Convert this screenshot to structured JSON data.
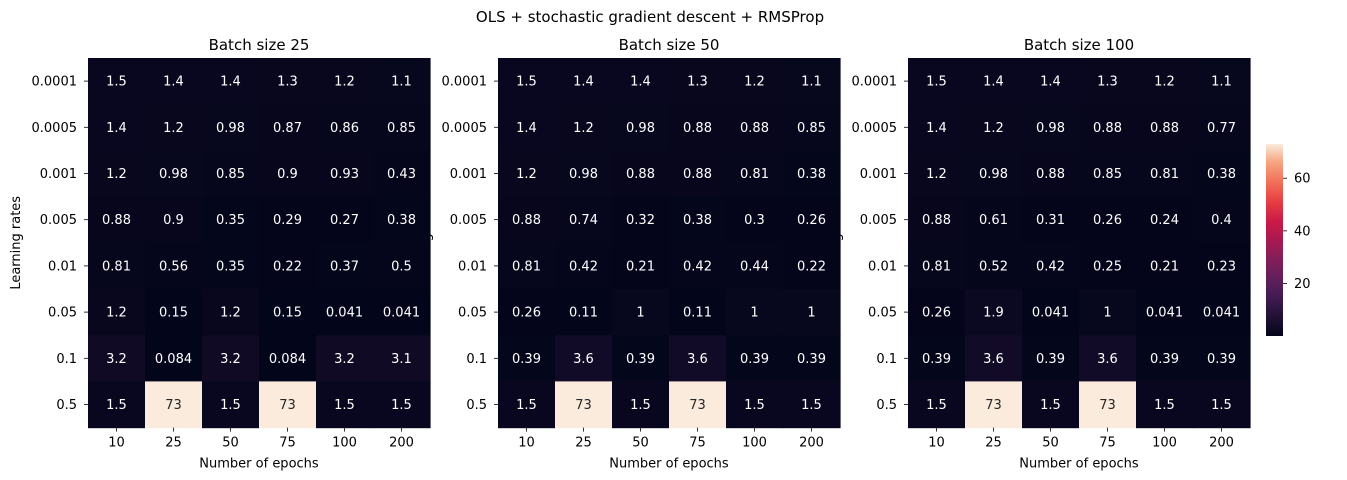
{
  "figure": {
    "suptitle": "OLS + stochastic gradient descent + RMSProp"
  },
  "colorbar": {
    "ticks": [
      20,
      40,
      60
    ],
    "vmin": 0.041,
    "vmax": 73,
    "colormap": "rocket"
  },
  "chart_data": [
    {
      "type": "heatmap",
      "title": "Batch size 25",
      "xlabel": "Number of epochs",
      "ylabel": "Learning rates",
      "x_categories": [
        "10",
        "25",
        "50",
        "75",
        "100",
        "200"
      ],
      "y_categories": [
        "0.0001",
        "0.0005",
        "0.001",
        "0.005",
        "0.01",
        "0.05",
        "0.1",
        "0.5"
      ],
      "values": [
        [
          1.5,
          1.4,
          1.4,
          1.3,
          1.2,
          1.1
        ],
        [
          1.4,
          1.2,
          0.98,
          0.87,
          0.86,
          0.85
        ],
        [
          1.2,
          0.98,
          0.85,
          0.9,
          0.93,
          0.43
        ],
        [
          0.88,
          0.9,
          0.35,
          0.29,
          0.27,
          0.38
        ],
        [
          0.81,
          0.56,
          0.35,
          0.22,
          0.37,
          0.5
        ],
        [
          1.2,
          0.15,
          1.2,
          0.15,
          0.041,
          0.041
        ],
        [
          3.2,
          0.084,
          3.2,
          0.084,
          3.2,
          3.1
        ],
        [
          1.5,
          73,
          1.5,
          73,
          1.5,
          1.5
        ]
      ]
    },
    {
      "type": "heatmap",
      "title": "Batch size 50",
      "xlabel": "Number of epochs",
      "ylabel": "Learning rates",
      "x_categories": [
        "10",
        "25",
        "50",
        "75",
        "100",
        "200"
      ],
      "y_categories": [
        "0.0001",
        "0.0005",
        "0.001",
        "0.005",
        "0.01",
        "0.05",
        "0.1",
        "0.5"
      ],
      "values": [
        [
          1.5,
          1.4,
          1.4,
          1.3,
          1.2,
          1.1
        ],
        [
          1.4,
          1.2,
          0.98,
          0.88,
          0.88,
          0.85
        ],
        [
          1.2,
          0.98,
          0.88,
          0.88,
          0.81,
          0.38
        ],
        [
          0.88,
          0.74,
          0.32,
          0.38,
          0.3,
          0.26
        ],
        [
          0.81,
          0.42,
          0.21,
          0.42,
          0.44,
          0.22
        ],
        [
          0.26,
          0.11,
          1,
          0.11,
          1,
          1
        ],
        [
          0.39,
          3.6,
          0.39,
          3.6,
          0.39,
          0.39
        ],
        [
          1.5,
          73,
          1.5,
          73,
          1.5,
          1.5
        ]
      ]
    },
    {
      "type": "heatmap",
      "title": "Batch size 100",
      "xlabel": "Number of epochs",
      "ylabel": "Learning rates",
      "x_categories": [
        "10",
        "25",
        "50",
        "75",
        "100",
        "200"
      ],
      "y_categories": [
        "0.0001",
        "0.0005",
        "0.001",
        "0.005",
        "0.01",
        "0.05",
        "0.1",
        "0.5"
      ],
      "values": [
        [
          1.5,
          1.4,
          1.4,
          1.3,
          1.2,
          1.1
        ],
        [
          1.4,
          1.2,
          0.98,
          0.88,
          0.88,
          0.77
        ],
        [
          1.2,
          0.98,
          0.88,
          0.85,
          0.81,
          0.38
        ],
        [
          0.88,
          0.61,
          0.31,
          0.26,
          0.24,
          0.4
        ],
        [
          0.81,
          0.52,
          0.42,
          0.25,
          0.21,
          0.23
        ],
        [
          0.26,
          1.9,
          0.041,
          1,
          0.041,
          0.041
        ],
        [
          0.39,
          3.6,
          0.39,
          3.6,
          0.39,
          0.39
        ],
        [
          1.5,
          73,
          1.5,
          73,
          1.5,
          1.5
        ]
      ]
    }
  ]
}
